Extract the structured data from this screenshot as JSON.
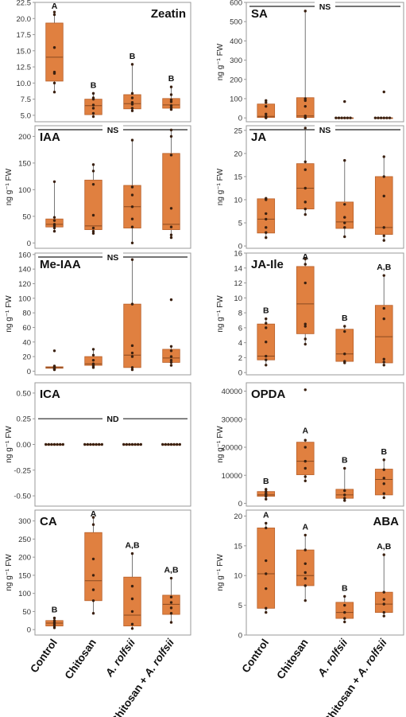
{
  "categories": [
    "Control",
    "Chitosan",
    "A. rolfsii",
    "Chitosan + A. rolfsii"
  ],
  "category_labels": [
    {
      "parts": [
        {
          "text": "Control",
          "italic": false
        }
      ]
    },
    {
      "parts": [
        {
          "text": "Chitosan",
          "italic": false
        }
      ]
    },
    {
      "parts": [
        {
          "text": "A. rolfsii",
          "italic": true
        }
      ]
    },
    {
      "parts": [
        {
          "text": "Chitosan + ",
          "italic": false
        },
        {
          "text": "A. rolfsii",
          "italic": true
        }
      ]
    }
  ],
  "colors": {
    "box_fill": "#e08040",
    "box_stroke": "#b8602a",
    "point": "#3a2010",
    "median": "#8a4a20",
    "frame": "#999999",
    "tick_text": "#333333",
    "ns_line": "#222222"
  },
  "chart_data": [
    {
      "type": "box",
      "title": "Zeatin",
      "title_pos": "top-right",
      "ylabel": "",
      "ylim": [
        4,
        22.5
      ],
      "yticks": [
        5.0,
        7.5,
        10.0,
        12.5,
        15.0,
        17.5,
        20.0,
        22.5
      ],
      "tick_decimals": 1,
      "letters": [
        "A",
        "B",
        "B",
        "B"
      ],
      "bracket": null,
      "boxes": [
        {
          "q1": 10.3,
          "median": 14.0,
          "q3": 19.3,
          "min": 8.5,
          "max": 21.0,
          "points": [
            8.6,
            10.0,
            11.5,
            11.7,
            15.5,
            20.6,
            21.0
          ]
        },
        {
          "q1": 5.1,
          "median": 6.5,
          "q3": 7.5,
          "min": 4.8,
          "max": 8.4,
          "points": [
            4.8,
            5.3,
            6.1,
            6.6,
            7.5,
            7.7,
            8.4
          ]
        },
        {
          "q1": 6.0,
          "median": 6.8,
          "q3": 8.2,
          "min": 5.6,
          "max": 12.9,
          "points": [
            5.7,
            6.1,
            6.7,
            7.0,
            7.7,
            8.4,
            12.9
          ]
        },
        {
          "q1": 6.1,
          "median": 6.6,
          "q3": 7.6,
          "min": 5.8,
          "max": 9.4,
          "points": [
            5.9,
            6.2,
            6.5,
            7.1,
            7.4,
            8.2,
            9.4
          ]
        }
      ]
    },
    {
      "type": "box",
      "title": "SA",
      "title_pos": "top-left",
      "ylabel": "ng g⁻¹ FW",
      "ylim": [
        -20,
        600
      ],
      "yticks": [
        0,
        100,
        200,
        300,
        400,
        500,
        600
      ],
      "tick_decimals": 0,
      "letters": [
        "",
        "",
        "",
        ""
      ],
      "bracket": {
        "label": "NS",
        "value": 590
      },
      "boxes": [
        {
          "q1": 2,
          "median": 8,
          "q3": 72,
          "min": 0,
          "max": 90,
          "points": [
            0,
            3,
            8,
            20,
            60,
            80,
            90
          ]
        },
        {
          "q1": 2,
          "median": 10,
          "q3": 105,
          "min": 0,
          "max": 555,
          "points": [
            0,
            3,
            10,
            60,
            90,
            100,
            555
          ]
        },
        {
          "q1": 0,
          "median": 0,
          "q3": 0,
          "min": 0,
          "max": 0,
          "points": [
            0,
            0,
            0,
            0,
            0,
            0,
            85
          ]
        },
        {
          "q1": 0,
          "median": 0,
          "q3": 0,
          "min": 0,
          "max": 0,
          "points": [
            0,
            0,
            0,
            0,
            0,
            0,
            135
          ]
        }
      ]
    },
    {
      "type": "box",
      "title": "IAA",
      "title_pos": "top-left",
      "ylabel": "ng g⁻¹ FW",
      "ylim": [
        -10,
        220
      ],
      "yticks": [
        0,
        50,
        100,
        150,
        200
      ],
      "tick_decimals": 0,
      "letters": [
        "",
        "",
        "",
        ""
      ],
      "bracket": {
        "label": "NS",
        "value": 215
      },
      "boxes": [
        {
          "q1": 30,
          "median": 35,
          "q3": 45,
          "min": 22,
          "max": 115,
          "points": [
            22,
            28,
            32,
            35,
            42,
            48,
            115
          ]
        },
        {
          "q1": 25,
          "median": 32,
          "q3": 118,
          "min": 18,
          "max": 147,
          "points": [
            18,
            22,
            28,
            52,
            110,
            135,
            147
          ]
        },
        {
          "q1": 28,
          "median": 68,
          "q3": 108,
          "min": 0,
          "max": 193,
          "points": [
            0,
            30,
            45,
            68,
            90,
            105,
            193
          ]
        },
        {
          "q1": 25,
          "median": 35,
          "q3": 168,
          "min": 10,
          "max": 212,
          "points": [
            10,
            15,
            30,
            65,
            165,
            200,
            212
          ]
        }
      ]
    },
    {
      "type": "box",
      "title": "JA",
      "title_pos": "top-left",
      "ylabel": "ng g⁻¹ FW",
      "ylim": [
        -0.5,
        26
      ],
      "yticks": [
        0,
        5,
        10,
        15,
        20,
        25
      ],
      "tick_decimals": 0,
      "letters": [
        "",
        "",
        "",
        ""
      ],
      "bracket": {
        "label": "NS",
        "value": 25.7
      },
      "boxes": [
        {
          "q1": 2.8,
          "median": 5.8,
          "q3": 10.2,
          "min": 1.8,
          "max": 10.3,
          "points": [
            1.8,
            2.9,
            4.0,
            5.8,
            7.0,
            10.0,
            10.3
          ]
        },
        {
          "q1": 8.0,
          "median": 12.5,
          "q3": 17.8,
          "min": 6.8,
          "max": 25.5,
          "points": [
            6.8,
            8.0,
            9.5,
            12.5,
            16.5,
            18.2,
            25.5
          ]
        },
        {
          "q1": 3.8,
          "median": 5.2,
          "q3": 9.5,
          "min": 2.0,
          "max": 18.5,
          "points": [
            2.0,
            4.0,
            5.0,
            6.2,
            9.0,
            18.5
          ]
        },
        {
          "q1": 2.5,
          "median": 4.0,
          "q3": 15.0,
          "min": 1.2,
          "max": 19.3,
          "points": [
            1.2,
            2.2,
            4.0,
            10.8,
            15.0,
            19.3
          ]
        }
      ]
    },
    {
      "type": "box",
      "title": "Me-IAA",
      "title_pos": "top-left",
      "ylabel": "ng g⁻¹ FW",
      "ylim": [
        -5,
        162
      ],
      "yticks": [
        0,
        20,
        40,
        60,
        80,
        100,
        120,
        140,
        160
      ],
      "tick_decimals": 0,
      "letters": [
        "",
        "",
        "",
        ""
      ],
      "bracket": {
        "label": "NS",
        "value": 158
      },
      "boxes": [
        {
          "q1": 4,
          "median": 5,
          "q3": 6,
          "min": 2,
          "max": 7,
          "points": [
            2,
            3,
            4,
            5,
            6,
            7,
            28
          ]
        },
        {
          "q1": 8,
          "median": 10,
          "q3": 20,
          "min": 5,
          "max": 30,
          "points": [
            5,
            7,
            9,
            10,
            15,
            22,
            30
          ]
        },
        {
          "q1": 5,
          "median": 22,
          "q3": 92,
          "min": 2,
          "max": 153,
          "points": [
            2,
            5,
            20,
            25,
            35,
            92,
            153
          ]
        },
        {
          "q1": 12,
          "median": 18,
          "q3": 30,
          "min": 8,
          "max": 35,
          "points": [
            8,
            12,
            15,
            20,
            28,
            34,
            98
          ]
        }
      ]
    },
    {
      "type": "box",
      "title": "JA-Ile",
      "title_pos": "top-left",
      "ylabel": "ng g⁻¹ FW",
      "ylim": [
        -0.3,
        16
      ],
      "yticks": [
        0,
        2,
        4,
        6,
        8,
        10,
        12,
        14,
        16
      ],
      "tick_decimals": 0,
      "letters": [
        "B",
        "A",
        "B",
        "A,B"
      ],
      "bracket": null,
      "boxes": [
        {
          "q1": 1.7,
          "median": 2.2,
          "q3": 6.5,
          "min": 1.0,
          "max": 7.2,
          "points": [
            1.0,
            1.7,
            2.2,
            4.1,
            6.0,
            6.6,
            7.2
          ]
        },
        {
          "q1": 5.2,
          "median": 9.2,
          "q3": 14.2,
          "min": 3.8,
          "max": 15.2,
          "points": [
            3.8,
            4.5,
            6.2,
            6.5,
            12.0,
            14.5,
            15.2
          ]
        },
        {
          "q1": 1.5,
          "median": 2.5,
          "q3": 5.8,
          "min": 1.3,
          "max": 6.2,
          "points": [
            1.3,
            1.5,
            2.5,
            5.5,
            6.2
          ]
        },
        {
          "q1": 1.3,
          "median": 4.8,
          "q3": 9.0,
          "min": 1.0,
          "max": 13.0,
          "points": [
            1.0,
            1.4,
            1.8,
            7.2,
            8.6,
            13.0
          ]
        }
      ]
    },
    {
      "type": "box",
      "title": "ICA",
      "title_pos": "top-left",
      "ylabel": "ng g⁻¹ FW",
      "ylim": [
        -0.6,
        0.6
      ],
      "yticks": [
        -0.5,
        -0.25,
        0.0,
        0.25,
        0.5
      ],
      "tick_decimals": 2,
      "letters": [
        "",
        "",
        "",
        ""
      ],
      "bracket": {
        "label": "ND",
        "value": 0.25
      },
      "boxes": [
        {
          "q1": 0,
          "median": 0,
          "q3": 0,
          "min": 0,
          "max": 0,
          "points": [
            0,
            0,
            0,
            0,
            0,
            0,
            0
          ]
        },
        {
          "q1": 0,
          "median": 0,
          "q3": 0,
          "min": 0,
          "max": 0,
          "points": [
            0,
            0,
            0,
            0,
            0,
            0,
            0
          ]
        },
        {
          "q1": 0,
          "median": 0,
          "q3": 0,
          "min": 0,
          "max": 0,
          "points": [
            0,
            0,
            0,
            0,
            0,
            0,
            0
          ]
        },
        {
          "q1": 0,
          "median": 0,
          "q3": 0,
          "min": 0,
          "max": 0,
          "points": [
            0,
            0,
            0,
            0,
            0,
            0,
            0
          ]
        }
      ]
    },
    {
      "type": "box",
      "title": "OPDA",
      "title_pos": "top-left",
      "ylabel": "ng g⁻¹ FW",
      "ylim": [
        -1000,
        43000
      ],
      "yticks": [
        0,
        10000,
        20000,
        30000,
        40000
      ],
      "tick_decimals": 0,
      "letters": [
        "B",
        "A",
        "B",
        "B"
      ],
      "bracket": null,
      "boxes": [
        {
          "q1": 2500,
          "median": 3000,
          "q3": 4200,
          "min": 1500,
          "max": 5000,
          "points": [
            1500,
            2500,
            3000,
            3500,
            4200,
            5000
          ]
        },
        {
          "q1": 10200,
          "median": 15000,
          "q3": 21800,
          "min": 8000,
          "max": 23000,
          "points": [
            8000,
            9500,
            12500,
            15000,
            20000,
            22500,
            40500
          ]
        },
        {
          "q1": 1800,
          "median": 3000,
          "q3": 5000,
          "min": 1000,
          "max": 12500,
          "points": [
            1000,
            1800,
            3000,
            4500,
            12500
          ]
        },
        {
          "q1": 3000,
          "median": 8500,
          "q3": 12200,
          "min": 2000,
          "max": 15500,
          "points": [
            2000,
            3500,
            7000,
            9000,
            12000,
            15500
          ]
        }
      ]
    },
    {
      "type": "box",
      "title": "CA",
      "title_pos": "top-left",
      "ylabel": "ng g⁻¹ FW",
      "ylim": [
        -15,
        330
      ],
      "yticks": [
        0,
        50,
        100,
        150,
        200,
        250,
        300
      ],
      "tick_decimals": 0,
      "letters": [
        "B",
        "A",
        "A,B",
        "A,B"
      ],
      "bracket": null,
      "boxes": [
        {
          "q1": 10,
          "median": 18,
          "q3": 25,
          "min": 5,
          "max": 32,
          "points": [
            5,
            10,
            15,
            20,
            25,
            32
          ]
        },
        {
          "q1": 80,
          "median": 135,
          "q3": 268,
          "min": 45,
          "max": 310,
          "points": [
            45,
            80,
            110,
            150,
            195,
            290,
            310
          ]
        },
        {
          "q1": 10,
          "median": 40,
          "q3": 145,
          "min": 3,
          "max": 210,
          "points": [
            3,
            15,
            50,
            85,
            120,
            210
          ]
        },
        {
          "q1": 42,
          "median": 70,
          "q3": 95,
          "min": 20,
          "max": 142,
          "points": [
            20,
            45,
            60,
            75,
            90,
            142
          ]
        }
      ]
    },
    {
      "type": "box",
      "title": "ABA",
      "title_pos": "top-right",
      "ylabel": "ng g⁻¹ FW",
      "ylim": [
        0,
        21
      ],
      "yticks": [
        0,
        5,
        10,
        15,
        20
      ],
      "tick_decimals": 0,
      "letters": [
        "A",
        "A",
        "B",
        "A,B"
      ],
      "bracket": null,
      "boxes": [
        {
          "q1": 4.5,
          "median": 10.3,
          "q3": 18.0,
          "min": 3.8,
          "max": 18.8,
          "points": [
            3.8,
            4.5,
            7.8,
            10.3,
            12.5,
            18.0,
            18.8
          ]
        },
        {
          "q1": 8.3,
          "median": 10.0,
          "q3": 14.3,
          "min": 5.8,
          "max": 16.8,
          "points": [
            5.8,
            8.3,
            9.5,
            10.5,
            12.0,
            14.3,
            16.8
          ]
        },
        {
          "q1": 2.8,
          "median": 3.8,
          "q3": 5.5,
          "min": 2.2,
          "max": 6.5,
          "points": [
            2.2,
            2.8,
            3.8,
            5.0,
            6.5
          ]
        },
        {
          "q1": 3.8,
          "median": 5.2,
          "q3": 7.2,
          "min": 3.2,
          "max": 13.5,
          "points": [
            3.2,
            3.8,
            5.2,
            6.0,
            7.2,
            13.5
          ]
        }
      ]
    }
  ]
}
